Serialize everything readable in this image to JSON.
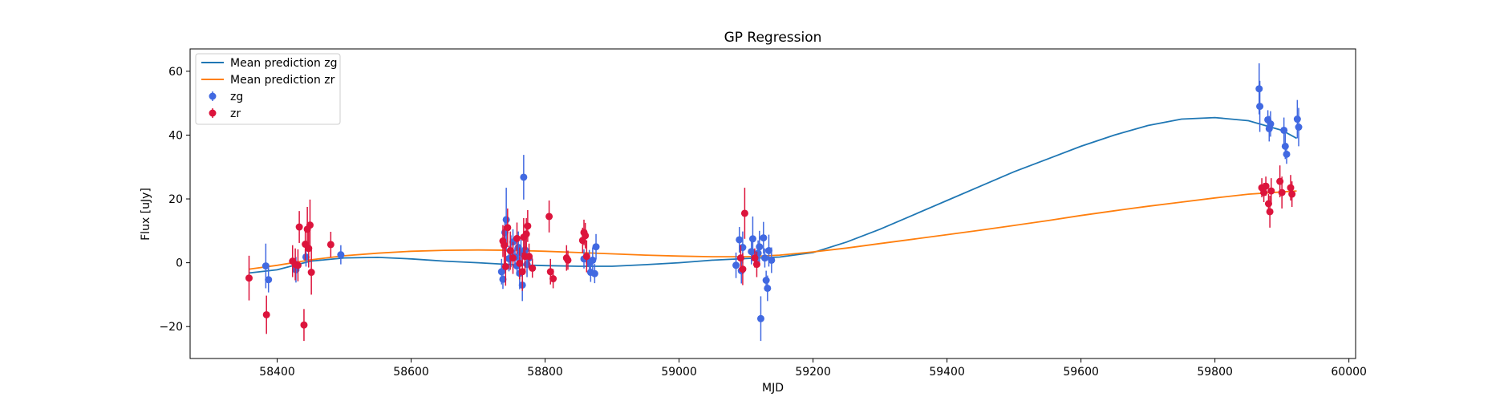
{
  "chart_data": {
    "type": "scatter",
    "title": "GP Regression",
    "xlabel": "MJD",
    "ylabel": "Flux [uJy]",
    "xlim": [
      58270,
      60010
    ],
    "ylim": [
      -30,
      67
    ],
    "xticks": [
      58400,
      58600,
      58800,
      59000,
      59200,
      59400,
      59600,
      59800,
      60000
    ],
    "yticks": [
      -20,
      0,
      20,
      40,
      60
    ],
    "grid": false,
    "legend_position": "top-left",
    "legend": [
      "Mean prediction zg",
      "Mean prediction zr",
      "zg",
      "zr"
    ],
    "colors": {
      "mean_zg": "#1f77b4",
      "mean_zr": "#ff7f0e",
      "zg": "#4169e1",
      "zr": "#dc143c"
    },
    "lines": [
      {
        "name": "Mean prediction zg",
        "color": "#1f77b4",
        "x": [
          58358,
          58400,
          58450,
          58500,
          58550,
          58600,
          58650,
          58700,
          58750,
          58800,
          58850,
          58900,
          58950,
          59000,
          59050,
          59100,
          59150,
          59200,
          59250,
          59300,
          59350,
          59400,
          59450,
          59500,
          59550,
          59600,
          59650,
          59700,
          59750,
          59800,
          59850,
          59900,
          59922
        ],
        "y": [
          -3.2,
          -2.2,
          0.5,
          1.5,
          1.7,
          1.2,
          0.5,
          0.0,
          -0.6,
          -0.9,
          -1.1,
          -1.1,
          -0.6,
          0.0,
          0.8,
          1.3,
          1.8,
          3.2,
          6.5,
          10.5,
          15.0,
          19.5,
          24.0,
          28.5,
          32.5,
          36.5,
          40.0,
          43.0,
          45.0,
          45.5,
          44.5,
          41.5,
          39.0
        ]
      },
      {
        "name": "Mean prediction zr",
        "color": "#ff7f0e",
        "x": [
          58358,
          58400,
          58450,
          58500,
          58550,
          58600,
          58650,
          58700,
          58750,
          58800,
          58850,
          58900,
          58950,
          59000,
          59050,
          59100,
          59150,
          59200,
          59250,
          59300,
          59350,
          59400,
          59450,
          59500,
          59550,
          59600,
          59650,
          59700,
          59750,
          59800,
          59850,
          59900,
          59922
        ],
        "y": [
          -2.0,
          -0.8,
          0.9,
          2.2,
          3.0,
          3.6,
          3.9,
          4.0,
          3.9,
          3.6,
          3.2,
          2.8,
          2.4,
          2.1,
          1.9,
          1.9,
          2.4,
          3.4,
          4.6,
          6.0,
          7.4,
          8.8,
          10.2,
          11.7,
          13.2,
          14.8,
          16.3,
          17.7,
          19.0,
          20.3,
          21.5,
          22.2,
          22.5
        ]
      }
    ],
    "series": [
      {
        "name": "zg",
        "color": "#4169e1",
        "points": [
          [
            58383,
            -1.0,
            7
          ],
          [
            58387,
            -5.3,
            4
          ],
          [
            58428,
            -2.2,
            4
          ],
          [
            58443,
            1.8,
            3
          ],
          [
            58495,
            2.5,
            3
          ],
          [
            58735,
            -2.8,
            4
          ],
          [
            58737,
            -5.2,
            3
          ],
          [
            58740,
            9.5,
            5
          ],
          [
            58742,
            13.5,
            10
          ],
          [
            58746,
            1.3,
            4
          ],
          [
            58749,
            3.6,
            5
          ],
          [
            58752,
            6.5,
            4
          ],
          [
            58755,
            1.8,
            3
          ],
          [
            58758,
            -1.0,
            3
          ],
          [
            58760,
            4.8,
            5
          ],
          [
            58762,
            -3.3,
            5
          ],
          [
            58764,
            3.2,
            4
          ],
          [
            58766,
            -7.0,
            5
          ],
          [
            58768,
            26.8,
            7
          ],
          [
            58770,
            4.0,
            4
          ],
          [
            58773,
            -0.5,
            4
          ],
          [
            58776,
            1.5,
            3
          ],
          [
            58858,
            1.2,
            3
          ],
          [
            58866,
            0.0,
            4
          ],
          [
            58868,
            -3.0,
            3
          ],
          [
            58871,
            0.8,
            4
          ],
          [
            58874,
            -3.4,
            3
          ],
          [
            58876,
            5.0,
            4
          ],
          [
            59085,
            -0.8,
            4
          ],
          [
            59090,
            7.2,
            4
          ],
          [
            59093,
            -2.5,
            4
          ],
          [
            59095,
            4.8,
            5
          ],
          [
            59108,
            3.5,
            4
          ],
          [
            59110,
            7.5,
            7
          ],
          [
            59118,
            3.0,
            4
          ],
          [
            59120,
            5.0,
            5
          ],
          [
            59122,
            -17.5,
            7
          ],
          [
            59126,
            7.8,
            5
          ],
          [
            59128,
            1.5,
            3
          ],
          [
            59130,
            -5.5,
            3
          ],
          [
            59132,
            -8.0,
            4
          ],
          [
            59134,
            3.8,
            5
          ],
          [
            59138,
            0.8,
            4
          ],
          [
            59866,
            54.5,
            8
          ],
          [
            59867,
            49.0,
            8
          ],
          [
            59879,
            44.8,
            3
          ],
          [
            59881,
            42.0,
            4
          ],
          [
            59883,
            43.5,
            4
          ],
          [
            59903,
            41.5,
            4
          ],
          [
            59905,
            36.5,
            4
          ],
          [
            59907,
            34.0,
            3
          ],
          [
            59923,
            45.0,
            6
          ],
          [
            59925,
            42.5,
            6
          ]
        ]
      },
      {
        "name": "zr",
        "color": "#dc143c",
        "points": [
          [
            58358,
            -4.8,
            7
          ],
          [
            58384,
            -16.3,
            6
          ],
          [
            58423,
            0.5,
            5
          ],
          [
            58427,
            -0.5,
            5
          ],
          [
            58431,
            -0.8,
            5
          ],
          [
            58433,
            11.2,
            5
          ],
          [
            58440,
            -19.5,
            5
          ],
          [
            58442,
            5.8,
            5
          ],
          [
            58445,
            10.5,
            7
          ],
          [
            58447,
            4.5,
            6
          ],
          [
            58449,
            11.8,
            8
          ],
          [
            58451,
            -3.0,
            7
          ],
          [
            58480,
            5.7,
            4
          ],
          [
            58737,
            6.8,
            5
          ],
          [
            58739,
            5.5,
            6
          ],
          [
            58741,
            -1.2,
            6
          ],
          [
            58744,
            11.0,
            6
          ],
          [
            58748,
            3.8,
            6
          ],
          [
            58752,
            1.5,
            5
          ],
          [
            58758,
            7.6,
            5
          ],
          [
            58762,
            -0.2,
            5
          ],
          [
            58766,
            -2.8,
            6
          ],
          [
            58768,
            8.0,
            6
          ],
          [
            58770,
            2.0,
            5
          ],
          [
            58772,
            9.0,
            5
          ],
          [
            58774,
            11.5,
            5
          ],
          [
            58776,
            2.0,
            4
          ],
          [
            58781,
            -1.7,
            3
          ],
          [
            58806,
            14.5,
            5
          ],
          [
            58808,
            -2.8,
            4
          ],
          [
            58812,
            -5.0,
            3
          ],
          [
            58832,
            1.5,
            4
          ],
          [
            58834,
            0.8,
            3
          ],
          [
            58856,
            7.0,
            4
          ],
          [
            58858,
            9.5,
            4
          ],
          [
            58860,
            8.5,
            4
          ],
          [
            58862,
            2.0,
            5
          ],
          [
            59092,
            1.5,
            4
          ],
          [
            59095,
            -2.0,
            5
          ],
          [
            59098,
            15.5,
            8
          ],
          [
            59113,
            1.5,
            3
          ],
          [
            59116,
            -0.5,
            4
          ],
          [
            59870,
            23.5,
            3
          ],
          [
            59873,
            22.0,
            3
          ],
          [
            59876,
            24.0,
            3
          ],
          [
            59880,
            18.5,
            3
          ],
          [
            59882,
            16.0,
            5
          ],
          [
            59884,
            22.5,
            4
          ],
          [
            59897,
            25.5,
            5
          ],
          [
            59900,
            22.0,
            5
          ],
          [
            59913,
            23.5,
            4
          ],
          [
            59915,
            21.5,
            4
          ]
        ]
      }
    ]
  }
}
